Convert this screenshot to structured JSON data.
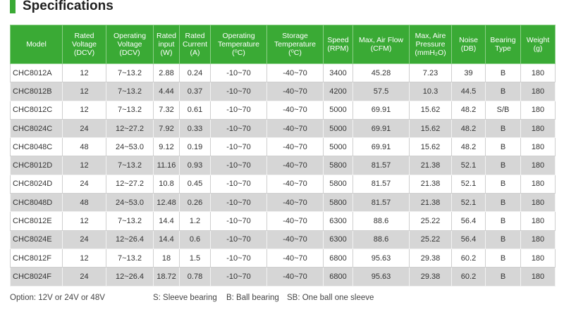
{
  "header": {
    "title": "Specifications"
  },
  "table": {
    "columns": [
      "Model",
      "Rated\nVoltage\n(DCV)",
      "Operating\nVoltage\n(DCV)",
      "Rated\ninput\n(W)",
      "Rated\nCurrent\n(A)",
      "Operating\nTemperature\n(⁰C)",
      "Storage\nTemperature\n(⁰C)",
      "Speed\n(RPM)",
      "Max, Air Flow\n(CFM)",
      "Max, Aire\nPressure\n(mmH₂O)",
      "Noise\n(DB)",
      "Bearing\nType",
      "Weight\n(g)"
    ],
    "rows": [
      [
        "CHC8012A",
        "12",
        "7~13.2",
        "2.88",
        "0.24",
        "-10~70",
        "-40~70",
        "3400",
        "45.28",
        "7.23",
        "39",
        "B",
        "180"
      ],
      [
        "CHC8012B",
        "12",
        "7~13.2",
        "4.44",
        "0.37",
        "-10~70",
        "-40~70",
        "4200",
        "57.5",
        "10.3",
        "44.5",
        "B",
        "180"
      ],
      [
        "CHC8012C",
        "12",
        "7~13.2",
        "7.32",
        "0.61",
        "-10~70",
        "-40~70",
        "5000",
        "69.91",
        "15.62",
        "48.2",
        "S/B",
        "180"
      ],
      [
        "CHC8024C",
        "24",
        "12~27.2",
        "7.92",
        "0.33",
        "-10~70",
        "-40~70",
        "5000",
        "69.91",
        "15.62",
        "48.2",
        "B",
        "180"
      ],
      [
        "CHC8048C",
        "48",
        "24~53.0",
        "9.12",
        "0.19",
        "-10~70",
        "-40~70",
        "5000",
        "69.91",
        "15.62",
        "48.2",
        "B",
        "180"
      ],
      [
        "CHC8012D",
        "12",
        "7~13.2",
        "11.16",
        "0.93",
        "-10~70",
        "-40~70",
        "5800",
        "81.57",
        "21.38",
        "52.1",
        "B",
        "180"
      ],
      [
        "CHC8024D",
        "24",
        "12~27.2",
        "10.8",
        "0.45",
        "-10~70",
        "-40~70",
        "5800",
        "81.57",
        "21.38",
        "52.1",
        "B",
        "180"
      ],
      [
        "CHC8048D",
        "48",
        "24~53.0",
        "12.48",
        "0.26",
        "-10~70",
        "-40~70",
        "5800",
        "81.57",
        "21.38",
        "52.1",
        "B",
        "180"
      ],
      [
        "CHC8012E",
        "12",
        "7~13.2",
        "14.4",
        "1.2",
        "-10~70",
        "-40~70",
        "6300",
        "88.6",
        "25.22",
        "56.4",
        "B",
        "180"
      ],
      [
        "CHC8024E",
        "24",
        "12~26.4",
        "14.4",
        "0.6",
        "-10~70",
        "-40~70",
        "6300",
        "88.6",
        "25.22",
        "56.4",
        "B",
        "180"
      ],
      [
        "CHC8012F",
        "12",
        "7~13.2",
        "18",
        "1.5",
        "-10~70",
        "-40~70",
        "6800",
        "95.63",
        "29.38",
        "60.2",
        "B",
        "180"
      ],
      [
        "CHC8024F",
        "24",
        "12~26.4",
        "18.72",
        "0.78",
        "-10~70",
        "-40~70",
        "6800",
        "95.63",
        "29.38",
        "60.2",
        "B",
        "180"
      ]
    ]
  },
  "footer": {
    "notes": [
      "Option: 12V or 24V or 48V",
      "S: Sleeve bearing",
      "B: Ball bearing",
      "SB: One ball one sleeve"
    ]
  }
}
